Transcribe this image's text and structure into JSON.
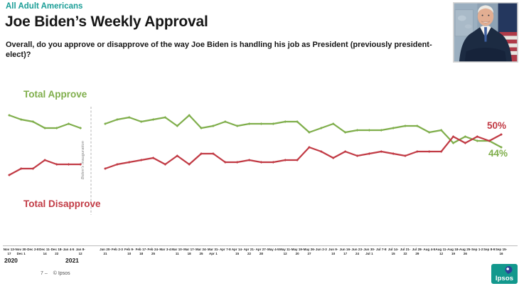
{
  "header": {
    "eyebrow": "All Adult Americans",
    "title": "Joe Biden’s Weekly Approval",
    "question": "Overall, do you approve or disapprove of the way Joe Biden is handling his job as President (previously president-elect)?"
  },
  "chart_data": {
    "type": "line",
    "title": "Joe Biden’s Weekly Approval",
    "grid": false,
    "ylim": [
      25,
      65
    ],
    "unit": "percent",
    "divider_label": "Biden’s Inauguration",
    "year_labels": [
      "2020",
      "2021"
    ],
    "categories_pre_inauguration": [
      "Nov 13-17",
      "Nov 30-Dec 1",
      "Dec 2-8",
      "Dec 11-14",
      "Dec 18-22",
      "Jan 4-5",
      "Jan 8-12"
    ],
    "categories_post_inauguration": [
      "Jan 20-21",
      "Feb 2-3",
      "Feb 9-10",
      "Feb 17-18",
      "Feb 24-25",
      "Mar 3-4",
      "Mar 10-11",
      "Mar 17-18",
      "Mar 24-25",
      "Mar 31-Apr 1",
      "Apr 7-8",
      "Apr 14-15",
      "Apr 21-22",
      "Apr 27-28",
      "May 4-5",
      "May 11-12",
      "May 19-20",
      "May 26-27",
      "Jun 2-3",
      "Jun 9-10",
      "Jun 16-17",
      "Jun 23-24",
      "Jun 30-Jul 1",
      "Jul 7-8",
      "Jul 14-15",
      "Jul 21-22",
      "Jul 28-29",
      "Aug 4-5",
      "Aug 11-12",
      "Aug 18-19",
      "Aug 25-26",
      "Sep 1-2",
      "Sep 8-9",
      "Sep 15-16"
    ],
    "series": [
      {
        "name": "Total Approve",
        "color": "#7fae4b",
        "end_label": "44%",
        "pre_values": [
          59,
          57,
          56,
          53,
          53,
          55,
          53
        ],
        "post_values": [
          55,
          57,
          58,
          56,
          57,
          58,
          54,
          59,
          53,
          54,
          56,
          54,
          55,
          55,
          55,
          56,
          56,
          51,
          53,
          55,
          51,
          52,
          52,
          52,
          53,
          54,
          54,
          51,
          52,
          46,
          49,
          47,
          47,
          44
        ]
      },
      {
        "name": "Total Disapprove",
        "color": "#c13a44",
        "end_label": "50%",
        "pre_values": [
          31,
          34,
          34,
          38,
          36,
          36,
          36
        ],
        "post_values": [
          34,
          36,
          37,
          38,
          39,
          36,
          40,
          36,
          41,
          41,
          37,
          37,
          38,
          37,
          37,
          38,
          38,
          44,
          42,
          39,
          42,
          40,
          41,
          42,
          41,
          40,
          42,
          42,
          42,
          49,
          46,
          49,
          47,
          50
        ]
      }
    ]
  },
  "footer": {
    "page_note": "7 ‒",
    "copyright": "© Ipsos",
    "logo_text": "Ipsos"
  }
}
